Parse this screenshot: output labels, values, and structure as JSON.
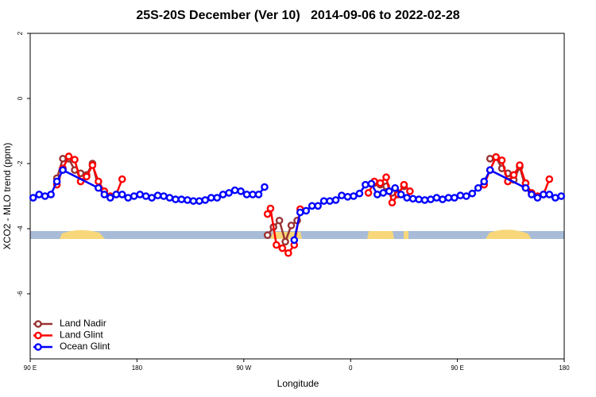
{
  "chart_data": {
    "type": "line",
    "title": "25S-20S December (Ver 10)   2014-09-06 to 2022-02-28",
    "xlabel": "Longitude",
    "ylabel": "XCO2 - MLO trend (ppm)",
    "xlim": [
      90,
      540
    ],
    "ylim": [
      -8,
      2
    ],
    "xticks": [
      {
        "value": 90,
        "label": "90 E"
      },
      180,
      {
        "value": 270,
        "label": "90 W"
      },
      {
        "value": 360,
        "label": "0"
      },
      {
        "value": 450,
        "label": "90 E"
      },
      {
        "value": 540,
        "label": "180"
      }
    ],
    "yticks": [
      2,
      0,
      -2,
      -4,
      -6
    ],
    "legend": "bottom-left",
    "series": [
      {
        "name": "Land Nadir",
        "color": "#993333",
        "x": [
          112.5,
          117.5,
          122.5,
          127.5,
          132.5,
          137.5,
          142.5,
          147.5,
          null,
          290,
          295,
          300,
          305,
          310,
          315,
          null,
          380,
          385,
          390,
          395,
          400,
          405,
          null,
          477.5,
          482.5,
          487.5,
          492.5,
          497.5,
          502.5,
          507.5
        ],
        "values": [
          -2.45,
          -1.85,
          -1.85,
          -2.2,
          -2.3,
          -2.35,
          -2.0,
          -2.75,
          null,
          -4.2,
          -3.95,
          -3.75,
          -4.4,
          -3.9,
          -3.75,
          null,
          -2.6,
          -2.65,
          -2.7,
          -2.9,
          -2.9,
          -2.7,
          null,
          -1.85,
          -1.8,
          -2.15,
          -2.3,
          -2.5,
          -2.1,
          -2.75
        ]
      },
      {
        "name": "Land Glint",
        "color": "#ff0000",
        "x": [
          112.5,
          117.5,
          122.5,
          127.5,
          132.5,
          137.5,
          142.5,
          147.5,
          152.5,
          157.5,
          162.5,
          167.5,
          null,
          290,
          292.5,
          297.5,
          302.5,
          307.5,
          312.5,
          317.5,
          null,
          375,
          380,
          385,
          390,
          395,
          400,
          405,
          410,
          null,
          472.5,
          477.5,
          482.5,
          487.5,
          492.5,
          497.5,
          502.5,
          507.5,
          512.5,
          517.5,
          522.5,
          527.5
        ],
        "values": [
          -2.65,
          -2.15,
          -1.78,
          -1.88,
          -2.55,
          -2.4,
          -2.05,
          -2.55,
          -2.85,
          -3.0,
          -2.95,
          -2.48,
          null,
          -3.55,
          -3.38,
          -4.5,
          -4.6,
          -4.75,
          -4.5,
          -3.4,
          null,
          -2.9,
          -2.55,
          -2.6,
          -2.42,
          -3.2,
          -2.95,
          -2.65,
          -2.85,
          null,
          -2.65,
          -2.2,
          -1.8,
          -1.9,
          -2.55,
          -2.35,
          -2.05,
          -2.6,
          -2.9,
          -3.0,
          -2.95,
          -2.48
        ]
      },
      {
        "name": "Ocean Glint",
        "color": "#0000ff",
        "x": [
          92.5,
          97.5,
          102.5,
          107.5,
          112.5,
          117.5,
          147.5,
          152.5,
          157.5,
          162.5,
          167.5,
          172.5,
          177.5,
          182.5,
          187.5,
          192.5,
          197.5,
          202.5,
          207.5,
          212.5,
          217.5,
          222.5,
          227.5,
          232.5,
          237.5,
          242.5,
          247.5,
          252.5,
          257.5,
          262.5,
          267.5,
          272.5,
          277.5,
          282.5,
          287.5,
          null,
          312.5,
          317.5,
          322.5,
          327.5,
          332.5,
          337.5,
          342.5,
          347.5,
          352.5,
          357.5,
          362.5,
          367.5,
          372.5,
          377.5,
          382.5,
          387.5,
          392.5,
          397.5,
          402.5,
          407.5,
          412.5,
          417.5,
          422.5,
          427.5,
          432.5,
          437.5,
          442.5,
          447.5,
          452.5,
          457.5,
          462.5,
          467.5,
          472.5,
          477.5,
          507.5,
          512.5,
          517.5,
          522.5,
          527.5,
          532.5,
          537.5
        ],
        "values": [
          -3.05,
          -2.95,
          -3.0,
          -2.95,
          -2.55,
          -2.2,
          -2.75,
          -2.95,
          -3.05,
          -2.95,
          -2.95,
          -3.05,
          -3.0,
          -2.95,
          -3.0,
          -3.05,
          -2.98,
          -3.0,
          -3.05,
          -3.1,
          -3.1,
          -3.12,
          -3.15,
          -3.15,
          -3.12,
          -3.05,
          -3.05,
          -2.95,
          -2.9,
          -2.82,
          -2.85,
          -2.95,
          -2.95,
          -2.95,
          -2.72,
          null,
          -4.35,
          -3.5,
          -3.45,
          -3.3,
          -3.3,
          -3.15,
          -3.15,
          -3.12,
          -2.98,
          -3.02,
          -3.0,
          -2.92,
          -2.65,
          -2.62,
          -2.95,
          -2.9,
          -2.85,
          -2.75,
          -2.95,
          -3.05,
          -3.08,
          -3.1,
          -3.12,
          -3.1,
          -3.05,
          -3.1,
          -3.05,
          -3.05,
          -2.98,
          -3.0,
          -2.92,
          -2.75,
          -2.55,
          -2.2,
          -2.75,
          -2.95,
          -3.05,
          -2.95,
          -2.95,
          -3.05,
          -3.0
        ]
      }
    ]
  }
}
